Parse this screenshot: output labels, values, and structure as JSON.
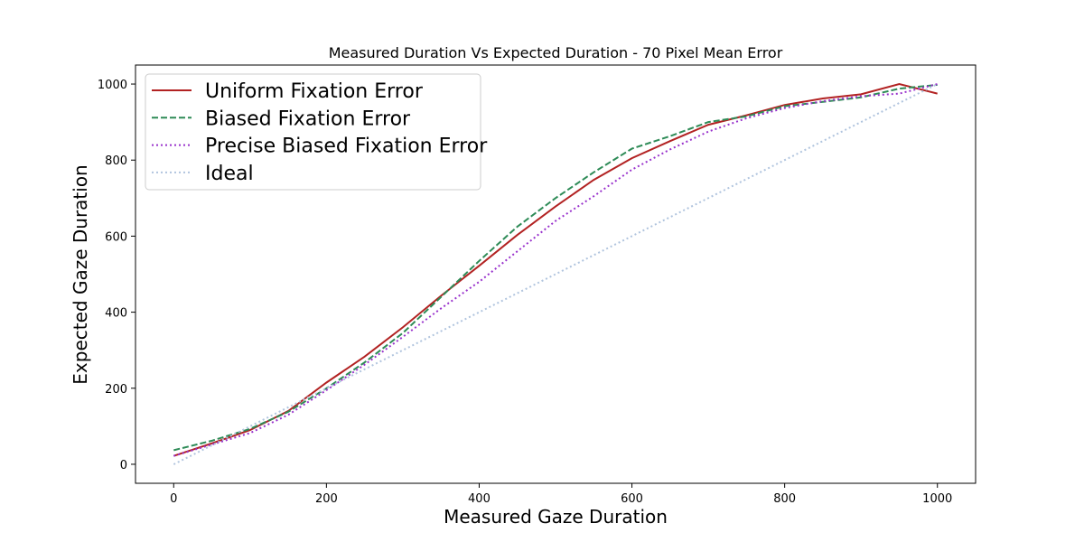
{
  "chart_data": {
    "type": "line",
    "title": "Measured Duration Vs Expected Duration - 70 Pixel Mean Error",
    "xlabel": "Measured Gaze Duration",
    "ylabel": "Expected Gaze Duration",
    "xlim": [
      -50,
      1050
    ],
    "ylim": [
      -50,
      1050
    ],
    "xticks": [
      0,
      200,
      400,
      600,
      800,
      1000
    ],
    "yticks": [
      0,
      200,
      400,
      600,
      800,
      1000
    ],
    "grid": false,
    "legend_position": "top-left",
    "series": [
      {
        "name": "Uniform Fixation Error",
        "color": "#b22222",
        "dash": "solid",
        "x": [
          0,
          50,
          100,
          150,
          200,
          250,
          300,
          350,
          400,
          450,
          500,
          550,
          600,
          650,
          700,
          750,
          800,
          850,
          900,
          950,
          1000
        ],
        "y": [
          22,
          55,
          90,
          140,
          215,
          283,
          360,
          443,
          522,
          603,
          678,
          748,
          805,
          850,
          893,
          918,
          945,
          962,
          973,
          1000,
          975
        ]
      },
      {
        "name": "Biased Fixation Error",
        "color": "#2e8b57",
        "dash": "dashed",
        "x": [
          0,
          50,
          100,
          150,
          200,
          250,
          300,
          350,
          400,
          450,
          500,
          550,
          600,
          650,
          700,
          750,
          800,
          850,
          900,
          950,
          1000
        ],
        "y": [
          37,
          62,
          93,
          138,
          200,
          268,
          345,
          440,
          535,
          625,
          700,
          768,
          830,
          863,
          900,
          915,
          942,
          953,
          965,
          988,
          998
        ]
      },
      {
        "name": "Precise Biased Fixation Error",
        "color": "#9932cc",
        "dash": "dotted",
        "x": [
          0,
          50,
          100,
          150,
          200,
          250,
          300,
          350,
          400,
          450,
          500,
          550,
          600,
          650,
          700,
          750,
          800,
          850,
          900,
          950,
          1000
        ],
        "y": [
          22,
          52,
          82,
          130,
          195,
          262,
          335,
          410,
          480,
          560,
          640,
          705,
          775,
          828,
          875,
          910,
          937,
          955,
          968,
          975,
          1000
        ]
      },
      {
        "name": "Ideal",
        "color": "#b0c4de",
        "dash": "dotted-light",
        "x": [
          0,
          1000
        ],
        "y": [
          0,
          1000
        ]
      }
    ]
  }
}
